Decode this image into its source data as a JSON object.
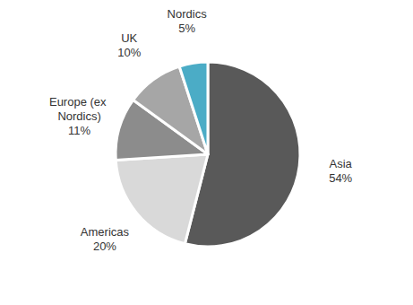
{
  "chart_data": {
    "type": "pie",
    "categories": [
      "Asia",
      "Americas",
      "Europe (ex Nordics)",
      "UK",
      "Nordics"
    ],
    "values": [
      54,
      20,
      11,
      10,
      5
    ],
    "value_labels": [
      "54%",
      "20%",
      "11%",
      "10%",
      "5%"
    ],
    "colors": [
      "#595959",
      "#d9d9d9",
      "#8c8c8c",
      "#a6a6a6",
      "#4bacc6"
    ],
    "data_labels": true
  }
}
